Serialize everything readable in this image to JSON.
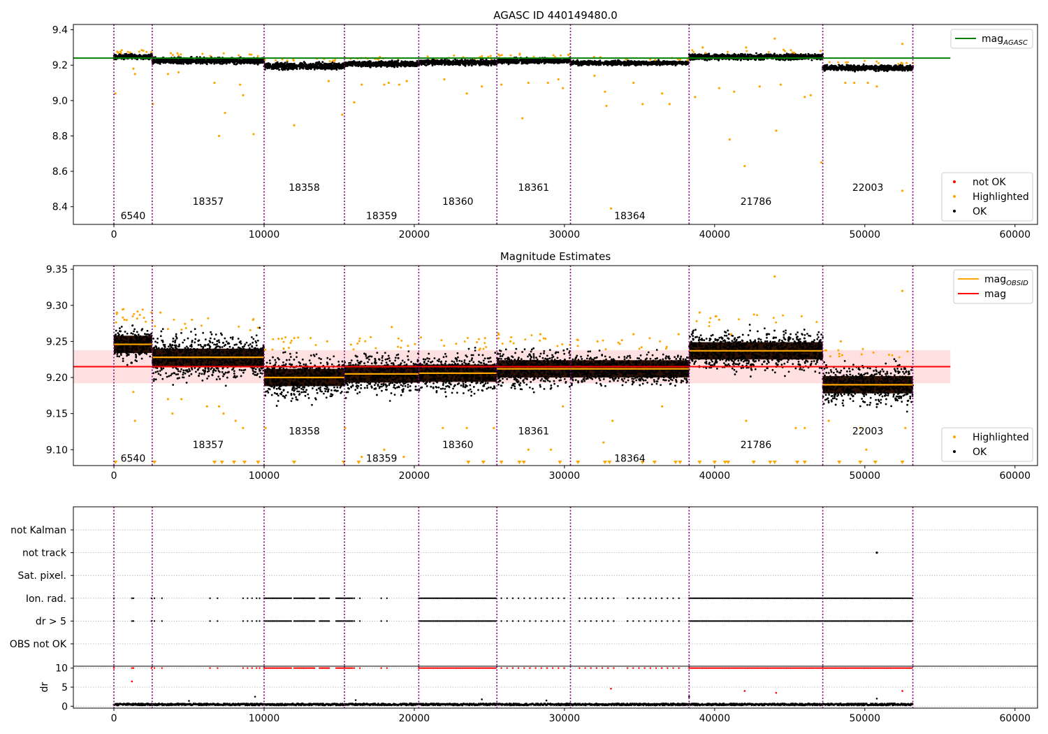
{
  "figure": {
    "title_top": "AGASC ID 440149480.0",
    "title_mid": "Magnitude Estimates"
  },
  "colors": {
    "ok": "#000000",
    "highlighted": "#ffa500",
    "not_ok": "#ff0000",
    "mag_agasc_line": "#008000",
    "mag_line": "#ff0000",
    "mag_band": "#ffcccc",
    "mag_obsid_line": "#ffa500",
    "obs_boundary": "#800080",
    "obs_fill": "#2a1005",
    "grid": "#b0b0b0"
  },
  "chart_data": [
    {
      "type": "scatter",
      "title": "AGASC ID 440149480.0",
      "xlim": [
        -2700,
        61500
      ],
      "ylim": [
        8.3,
        9.43
      ],
      "x_ticks": [
        0,
        10000,
        20000,
        30000,
        40000,
        50000,
        60000
      ],
      "x_tick_labels": [
        "0",
        "10000",
        "20000",
        "30000",
        "40000",
        "50000",
        "60000"
      ],
      "y_ticks": [
        8.4,
        8.6,
        8.8,
        9.0,
        9.2,
        9.4
      ],
      "y_tick_labels": [
        "8.4",
        "8.6",
        "8.8",
        "9.0",
        "9.2",
        "9.4"
      ],
      "obs_boundaries": [
        0,
        2550,
        10000,
        15350,
        20300,
        25500,
        30400,
        38300,
        47200,
        53200
      ],
      "obs_labels": [
        {
          "text": "6540",
          "x": 1275,
          "y": 8.35
        },
        {
          "text": "18357",
          "x": 6275,
          "y": 8.43
        },
        {
          "text": "18358",
          "x": 12675,
          "y": 8.51
        },
        {
          "text": "18359",
          "x": 17825,
          "y": 8.35
        },
        {
          "text": "18360",
          "x": 22900,
          "y": 8.43
        },
        {
          "text": "18361",
          "x": 27950,
          "y": 8.51
        },
        {
          "text": "18364",
          "x": 34350,
          "y": 8.35
        },
        {
          "text": "21786",
          "x": 42750,
          "y": 8.43
        },
        {
          "text": "22003",
          "x": 50200,
          "y": 8.51
        }
      ],
      "obs_levels": [
        9.248,
        9.225,
        9.195,
        9.207,
        9.215,
        9.225,
        9.212,
        9.247,
        9.185
      ],
      "obs_spreads": [
        0.012,
        0.015,
        0.015,
        0.013,
        0.013,
        0.013,
        0.01,
        0.014,
        0.013
      ],
      "mag_agasc": 9.24,
      "mag_agasc_xrange": [
        -2700,
        55700
      ],
      "highlighted_points": [
        [
          100,
          9.04
        ],
        [
          1300,
          9.18
        ],
        [
          1400,
          9.15
        ],
        [
          2600,
          8.98
        ],
        [
          3600,
          9.15
        ],
        [
          4300,
          9.16
        ],
        [
          6700,
          9.1
        ],
        [
          7000,
          8.8
        ],
        [
          7400,
          8.93
        ],
        [
          8400,
          9.09
        ],
        [
          8600,
          9.03
        ],
        [
          9300,
          8.81
        ],
        [
          12000,
          8.86
        ],
        [
          14300,
          9.11
        ],
        [
          15200,
          8.92
        ],
        [
          16000,
          8.99
        ],
        [
          16500,
          9.09
        ],
        [
          18000,
          9.09
        ],
        [
          18300,
          9.1
        ],
        [
          19000,
          9.09
        ],
        [
          19500,
          9.11
        ],
        [
          22000,
          9.12
        ],
        [
          23500,
          9.04
        ],
        [
          24500,
          9.08
        ],
        [
          25800,
          9.09
        ],
        [
          27200,
          8.9
        ],
        [
          27600,
          9.1
        ],
        [
          28900,
          9.1
        ],
        [
          29600,
          9.12
        ],
        [
          29900,
          9.07
        ],
        [
          32000,
          9.14
        ],
        [
          32700,
          9.05
        ],
        [
          32800,
          8.97
        ],
        [
          33100,
          8.39
        ],
        [
          34600,
          9.1
        ],
        [
          35200,
          8.98
        ],
        [
          36500,
          9.04
        ],
        [
          37000,
          8.98
        ],
        [
          38700,
          9.02
        ],
        [
          40300,
          9.07
        ],
        [
          41000,
          8.78
        ],
        [
          41300,
          9.05
        ],
        [
          42000,
          8.63
        ],
        [
          43000,
          9.08
        ],
        [
          44100,
          8.83
        ],
        [
          44400,
          9.09
        ],
        [
          46000,
          9.02
        ],
        [
          46400,
          9.03
        ],
        [
          47100,
          8.65
        ],
        [
          48700,
          9.1
        ],
        [
          49300,
          9.1
        ],
        [
          50200,
          9.1
        ],
        [
          50800,
          9.08
        ],
        [
          52500,
          8.49
        ],
        [
          52500,
          9.32
        ],
        [
          44000,
          9.35
        ],
        [
          39200,
          9.3
        ],
        [
          42100,
          9.3
        ]
      ],
      "legend_top": [
        {
          "label": "mag",
          "subscript": "AGASC",
          "kind": "line",
          "color": "#008000"
        }
      ],
      "legend_bottom": [
        {
          "label": "not OK",
          "kind": "dot",
          "color": "#ff0000"
        },
        {
          "label": "Highlighted",
          "kind": "dot",
          "color": "#ffa500"
        },
        {
          "label": "OK",
          "kind": "dot",
          "color": "#000000"
        }
      ]
    },
    {
      "type": "scatter",
      "title": "Magnitude Estimates",
      "xlim": [
        -2700,
        61500
      ],
      "ylim": [
        9.078,
        9.355
      ],
      "x_ticks": [
        0,
        10000,
        20000,
        30000,
        40000,
        50000,
        60000
      ],
      "x_tick_labels": [
        "0",
        "10000",
        "20000",
        "30000",
        "40000",
        "50000",
        "60000"
      ],
      "y_ticks": [
        9.1,
        9.15,
        9.2,
        9.25,
        9.3,
        9.35
      ],
      "y_tick_labels": [
        "9.10",
        "9.15",
        "9.20",
        "9.25",
        "9.30",
        "9.35"
      ],
      "obs_labels": [
        {
          "text": "6540",
          "x": 1275,
          "y": 9.088
        },
        {
          "text": "18357",
          "x": 6275,
          "y": 9.107
        },
        {
          "text": "18358",
          "x": 12675,
          "y": 9.126
        },
        {
          "text": "18359",
          "x": 17825,
          "y": 9.088
        },
        {
          "text": "18360",
          "x": 22900,
          "y": 9.107
        },
        {
          "text": "18361",
          "x": 27950,
          "y": 9.126
        },
        {
          "text": "18364",
          "x": 34350,
          "y": 9.088
        },
        {
          "text": "21786",
          "x": 42750,
          "y": 9.107
        },
        {
          "text": "22003",
          "x": 50200,
          "y": 9.126
        }
      ],
      "mag_obsid": [
        9.246,
        9.228,
        9.2,
        9.205,
        9.206,
        9.212,
        9.212,
        9.237,
        9.19
      ],
      "mag": 9.215,
      "mag_band": [
        9.192,
        9.238
      ],
      "mag_xrange": [
        -2700,
        55700
      ],
      "highlighted_points": [
        [
          200,
          9.29
        ],
        [
          700,
          9.28
        ],
        [
          1300,
          9.18
        ],
        [
          1400,
          9.14
        ],
        [
          2500,
          9.29
        ],
        [
          3100,
          9.29
        ],
        [
          3600,
          9.17
        ],
        [
          3900,
          9.15
        ],
        [
          4500,
          9.17
        ],
        [
          5200,
          9.28
        ],
        [
          6200,
          9.16
        ],
        [
          7000,
          9.16
        ],
        [
          7300,
          9.15
        ],
        [
          8100,
          9.14
        ],
        [
          8600,
          9.13
        ],
        [
          10100,
          9.13
        ],
        [
          11300,
          9.24
        ],
        [
          14200,
          9.25
        ],
        [
          15400,
          9.13
        ],
        [
          16500,
          9.09
        ],
        [
          18000,
          9.1
        ],
        [
          18500,
          9.27
        ],
        [
          19300,
          9.09
        ],
        [
          21900,
          9.13
        ],
        [
          23500,
          9.13
        ],
        [
          25300,
          9.13
        ],
        [
          26400,
          9.25
        ],
        [
          27600,
          9.1
        ],
        [
          28400,
          9.26
        ],
        [
          29100,
          9.1
        ],
        [
          29900,
          9.16
        ],
        [
          32200,
          9.25
        ],
        [
          32600,
          9.11
        ],
        [
          33200,
          9.14
        ],
        [
          34600,
          9.26
        ],
        [
          36500,
          9.16
        ],
        [
          37600,
          9.26
        ],
        [
          39000,
          9.29
        ],
        [
          40300,
          9.28
        ],
        [
          41100,
          9.26
        ],
        [
          42100,
          9.14
        ],
        [
          44000,
          9.34
        ],
        [
          45400,
          9.13
        ],
        [
          46000,
          9.13
        ],
        [
          47600,
          9.14
        ],
        [
          48400,
          9.25
        ],
        [
          49700,
          9.13
        ],
        [
          50100,
          9.1
        ],
        [
          52500,
          9.32
        ],
        [
          52700,
          9.13
        ]
      ],
      "below_range_markers": [
        100,
        2700,
        6700,
        7200,
        8000,
        8700,
        9600,
        12000,
        15300,
        16300,
        23600,
        24600,
        25800,
        27000,
        27300,
        29700,
        30900,
        32700,
        33000,
        35200,
        36000,
        37400,
        37700,
        39000,
        40000,
        40700,
        40900,
        42600,
        43700,
        44000,
        45500,
        46000,
        48300,
        49700,
        50700,
        52500
      ],
      "legend_top": [
        {
          "label": "mag",
          "subscript": "OBSID",
          "kind": "line",
          "color": "#ffa500"
        },
        {
          "label": "mag",
          "subscript": "",
          "kind": "line",
          "color": "#ff0000"
        }
      ],
      "legend_bottom": [
        {
          "label": "Highlighted",
          "kind": "dot",
          "color": "#ffa500"
        },
        {
          "label": "OK",
          "kind": "dot",
          "color": "#000000"
        }
      ]
    },
    {
      "type": "scatter",
      "xlim": [
        -2700,
        61500
      ],
      "categories": [
        "not Kalman",
        "not track",
        "Sat. pixel.",
        "Ion. rad.",
        "dr > 5",
        "OBS not OK"
      ],
      "flag_points": {
        "not track": [
          50800
        ],
        "Ion. rad.": [
          0,
          1200,
          1300,
          2500,
          2700,
          3200,
          6400,
          6900,
          8600,
          8900,
          9200,
          9500,
          9700
        ],
        "dr > 5": [
          0,
          1200,
          1300,
          2500,
          2700,
          3200,
          6400,
          6900,
          8600,
          8900,
          9200,
          9500,
          9700
        ]
      },
      "flag_dense_ranges": [
        [
          10000,
          11800
        ],
        [
          12000,
          13400
        ],
        [
          13700,
          14400
        ],
        [
          14800,
          15900
        ],
        [
          20300,
          25500
        ],
        [
          38300,
          47200
        ],
        [
          47200,
          53200
        ]
      ],
      "flag_sparse_ranges": [
        [
          16000,
          16400
        ],
        [
          17800,
          18200
        ],
        [
          25800,
          30000
        ],
        [
          31000,
          33500
        ],
        [
          34200,
          37800
        ]
      ]
    },
    {
      "type": "scatter",
      "ylabel": "dr",
      "xlim": [
        -2700,
        61500
      ],
      "ylim": [
        -0.5,
        10.5
      ],
      "x_ticks": [
        0,
        10000,
        20000,
        30000,
        40000,
        50000,
        60000
      ],
      "x_tick_labels": [
        "0",
        "10000",
        "20000",
        "30000",
        "40000",
        "50000",
        "60000"
      ],
      "y_ticks": [
        0,
        5,
        10
      ],
      "y_tick_labels": [
        "0",
        "5",
        "10"
      ],
      "outlier_points": [
        [
          1200,
          6.5
        ],
        [
          9400,
          2.5
        ],
        [
          33100,
          4.6
        ],
        [
          38300,
          2.5
        ],
        [
          42000,
          4.0
        ],
        [
          44100,
          3.5
        ],
        [
          50800,
          2.0
        ],
        [
          52500,
          4.0
        ],
        [
          24500,
          1.8
        ],
        [
          16100,
          1.6
        ],
        [
          5000,
          1.4
        ],
        [
          28800,
          1.5
        ]
      ],
      "clipped_value": 10
    }
  ]
}
